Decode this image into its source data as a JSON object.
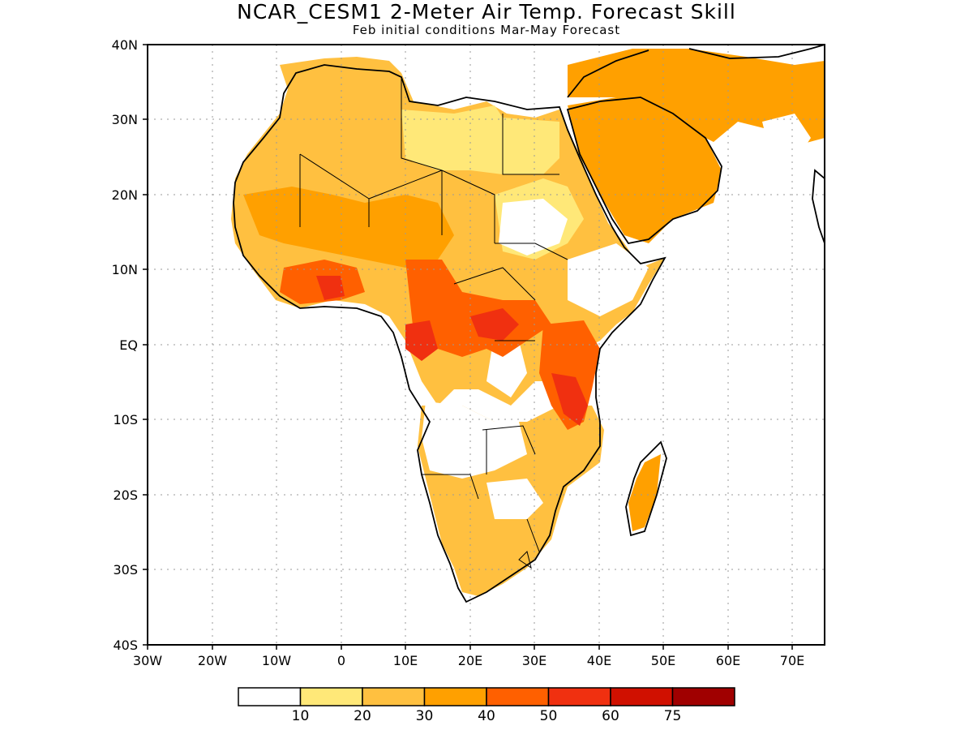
{
  "title": "NCAR_CESM1 2-Meter Air Temp. Forecast Skill",
  "subtitle": "Feb initial conditions  Mar-May Forecast",
  "map": {
    "lon_range": [
      -30,
      75
    ],
    "lat_range": [
      -40,
      40
    ],
    "lon_ticks": [
      "30W",
      "20W",
      "10W",
      "0",
      "10E",
      "20E",
      "30E",
      "40E",
      "50E",
      "60E",
      "70E"
    ],
    "lat_ticks": [
      "40N",
      "30N",
      "20N",
      "10N",
      "EQ",
      "10S",
      "20S",
      "30S",
      "40S"
    ],
    "grid": "dotted"
  },
  "colorbar": {
    "colors": [
      "#ffffff",
      "#ffe878",
      "#ffc040",
      "#ffa000",
      "#ff6000",
      "#f03010",
      "#d01000",
      "#a00000"
    ],
    "labels": [
      "10",
      "20",
      "30",
      "40",
      "50",
      "60",
      "75"
    ]
  }
}
